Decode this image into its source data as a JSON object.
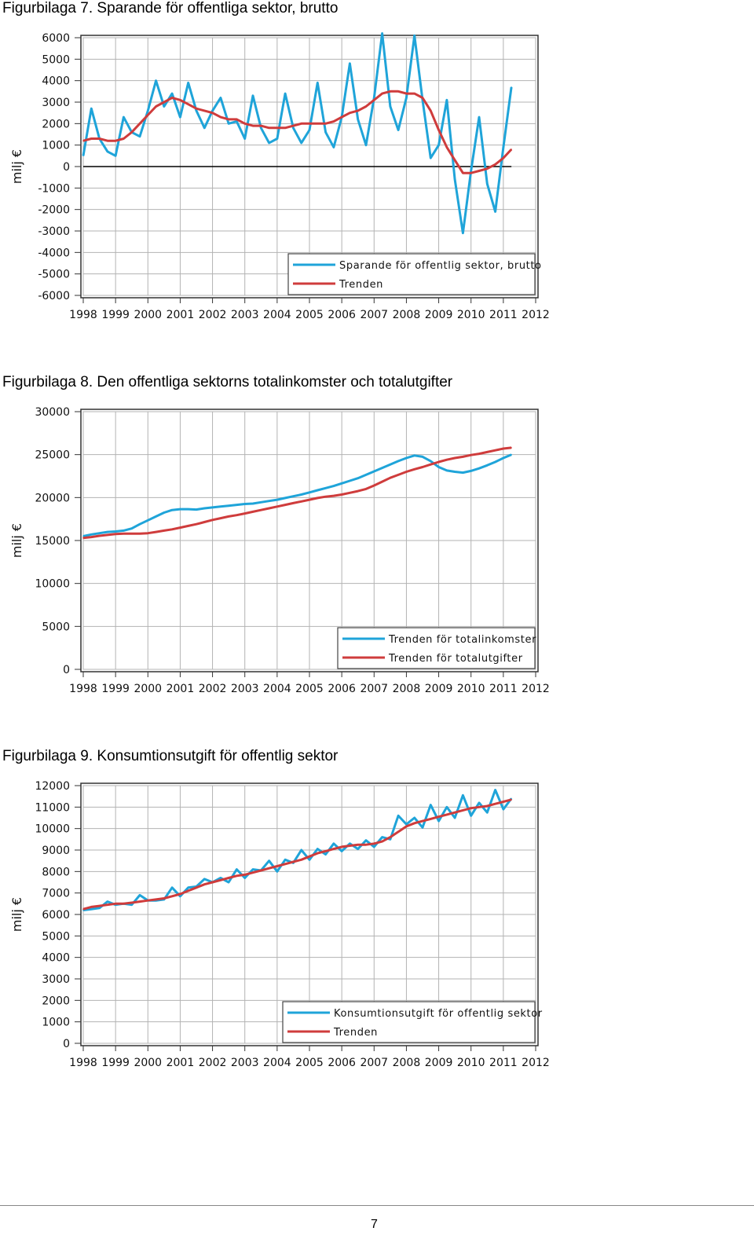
{
  "page_number": "7",
  "colors": {
    "series_blue": "#1fa4d9",
    "series_red": "#cf3c3c",
    "grid": "#b3b3b3",
    "frame": "#333333"
  },
  "chart_data": [
    {
      "figure_title": "Figurbilaga 7. Sparande för offentliga sektor, brutto",
      "type": "line",
      "ylabel": "milj €",
      "ylim": [
        -6000,
        6000
      ],
      "yticks": [
        6000,
        5000,
        4000,
        3000,
        2000,
        1000,
        0,
        -1000,
        -2000,
        -3000,
        -4000,
        -5000,
        -6000
      ],
      "x_ticks": [
        "1998",
        "1999",
        "2000",
        "2001",
        "2002",
        "2003",
        "2004",
        "2005",
        "2006",
        "2007",
        "2008",
        "2009",
        "2010",
        "2011",
        "2012"
      ],
      "x_start": 1998.0,
      "x_step": 0.25,
      "xlim": [
        1998,
        2012
      ],
      "zero_line": true,
      "grid": true,
      "legend_position": "bottom-right",
      "series": [
        {
          "name": "Sparande för offentlig sektor, brutto",
          "color": "#1fa4d9",
          "values": [
            500,
            2700,
            1300,
            700,
            500,
            2300,
            1600,
            1400,
            2600,
            4000,
            2800,
            3400,
            2300,
            3900,
            2600,
            1800,
            2600,
            3200,
            2000,
            2100,
            1300,
            3300,
            1800,
            1100,
            1300,
            3400,
            1800,
            1100,
            1700,
            3900,
            1600,
            900,
            2300,
            4800,
            2200,
            1000,
            3200,
            6200,
            2800,
            1700,
            3200,
            6100,
            3100,
            400,
            1000,
            3100,
            -600,
            -3100,
            -200,
            2300,
            -800,
            -2100,
            900,
            3700
          ]
        },
        {
          "name": "Trenden",
          "color": "#cf3c3c",
          "values": [
            1200,
            1300,
            1300,
            1200,
            1200,
            1300,
            1600,
            2000,
            2400,
            2800,
            3000,
            3200,
            3100,
            2900,
            2700,
            2600,
            2500,
            2300,
            2200,
            2200,
            2000,
            1900,
            1900,
            1800,
            1800,
            1800,
            1900,
            2000,
            2000,
            2000,
            2000,
            2100,
            2300,
            2500,
            2600,
            2800,
            3100,
            3400,
            3500,
            3500,
            3400,
            3400,
            3200,
            2600,
            1700,
            900,
            300,
            -300,
            -300,
            -200,
            -100,
            100,
            400,
            800
          ]
        }
      ]
    },
    {
      "figure_title": "Figurbilaga 8. Den offentliga sektorns totalinkomster och totalutgifter",
      "type": "line",
      "ylabel": "milj €",
      "ylim": [
        0,
        30000
      ],
      "yticks": [
        30000,
        25000,
        20000,
        15000,
        10000,
        5000,
        0
      ],
      "x_ticks": [
        "1998",
        "1999",
        "2000",
        "2001",
        "2002",
        "2003",
        "2004",
        "2005",
        "2006",
        "2007",
        "2008",
        "2009",
        "2010",
        "2011",
        "2012"
      ],
      "x_start": 1998.0,
      "x_step": 0.25,
      "xlim": [
        1998,
        2012
      ],
      "zero_line": false,
      "grid": true,
      "legend_position": "bottom-right",
      "series": [
        {
          "name": "Trenden för totalinkomster",
          "color": "#1fa4d9",
          "values": [
            15500,
            15700,
            15850,
            16000,
            16050,
            16150,
            16400,
            16900,
            17350,
            17800,
            18250,
            18550,
            18650,
            18650,
            18600,
            18750,
            18850,
            18950,
            19050,
            19150,
            19250,
            19300,
            19450,
            19600,
            19750,
            19950,
            20150,
            20350,
            20600,
            20850,
            21100,
            21350,
            21650,
            21950,
            22250,
            22650,
            23050,
            23450,
            23850,
            24250,
            24600,
            24900,
            24750,
            24250,
            23550,
            23150,
            23000,
            22900,
            23100,
            23400,
            23750,
            24150,
            24600,
            25000
          ]
        },
        {
          "name": "Trenden för totalutgifter",
          "color": "#cf3c3c",
          "values": [
            15300,
            15400,
            15550,
            15650,
            15750,
            15800,
            15800,
            15800,
            15850,
            16000,
            16150,
            16300,
            16500,
            16700,
            16900,
            17150,
            17400,
            17600,
            17800,
            17950,
            18150,
            18350,
            18550,
            18750,
            18950,
            19150,
            19350,
            19550,
            19750,
            19950,
            20100,
            20200,
            20350,
            20550,
            20750,
            21000,
            21400,
            21850,
            22300,
            22650,
            23000,
            23300,
            23550,
            23850,
            24150,
            24400,
            24600,
            24750,
            24950,
            25100,
            25300,
            25500,
            25700,
            25800
          ]
        }
      ]
    },
    {
      "figure_title": "Figurbilaga 9. Konsumtionsutgift för offentlig sektor",
      "type": "line",
      "ylabel": "milj €",
      "ylim": [
        0,
        12000
      ],
      "yticks": [
        12000,
        11000,
        10000,
        9000,
        8000,
        7000,
        6000,
        5000,
        4000,
        3000,
        2000,
        1000,
        0
      ],
      "x_ticks": [
        "1998",
        "1999",
        "2000",
        "2001",
        "2002",
        "2003",
        "2004",
        "2005",
        "2006",
        "2007",
        "2008",
        "2009",
        "2010",
        "2011",
        "2012"
      ],
      "x_start": 1998.0,
      "x_step": 0.25,
      "xlim": [
        1998,
        2012
      ],
      "zero_line": false,
      "grid": true,
      "legend_position": "bottom-right",
      "series": [
        {
          "name": "Konsumtionsutgift för offentlig sektor",
          "color": "#1fa4d9",
          "values": [
            6200,
            6250,
            6300,
            6600,
            6450,
            6500,
            6450,
            6900,
            6650,
            6650,
            6700,
            7250,
            6850,
            7250,
            7300,
            7650,
            7500,
            7700,
            7500,
            8100,
            7700,
            8100,
            8050,
            8500,
            8000,
            8550,
            8400,
            9000,
            8550,
            9050,
            8800,
            9300,
            8950,
            9300,
            9050,
            9450,
            9150,
            9600,
            9500,
            10600,
            10200,
            10500,
            10050,
            11100,
            10350,
            11000,
            10500,
            11550,
            10600,
            11200,
            10750,
            11800,
            10900,
            11400
          ]
        },
        {
          "name": "Trenden",
          "color": "#cf3c3c",
          "values": [
            6250,
            6350,
            6400,
            6450,
            6500,
            6500,
            6550,
            6600,
            6650,
            6700,
            6750,
            6850,
            6950,
            7100,
            7250,
            7400,
            7500,
            7600,
            7700,
            7800,
            7850,
            7950,
            8050,
            8150,
            8250,
            8350,
            8450,
            8550,
            8700,
            8850,
            8950,
            9050,
            9150,
            9200,
            9250,
            9250,
            9300,
            9400,
            9600,
            9850,
            10100,
            10250,
            10350,
            10450,
            10550,
            10650,
            10750,
            10850,
            10950,
            11000,
            11050,
            11150,
            11250,
            11350
          ]
        }
      ]
    }
  ]
}
